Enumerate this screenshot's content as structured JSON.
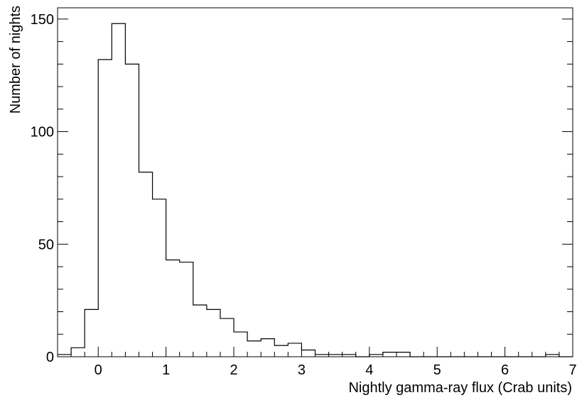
{
  "chart_data": {
    "type": "bar",
    "xlabel": "Nightly gamma-ray flux (Crab units)",
    "ylabel": "Number of nights",
    "xlim": [
      -0.6,
      7
    ],
    "ylim": [
      0,
      155
    ],
    "xticks": [
      0,
      1,
      2,
      3,
      4,
      5,
      6,
      7
    ],
    "yticks": [
      0,
      50,
      100,
      150
    ],
    "bin_width": 0.2,
    "bin_start": -0.6,
    "values": [
      1,
      4,
      21,
      132,
      148,
      130,
      82,
      70,
      43,
      42,
      23,
      21,
      17,
      11,
      7,
      8,
      5,
      6,
      3,
      1,
      1,
      1,
      0,
      1,
      2,
      2,
      0,
      0,
      0,
      0,
      0,
      0,
      0,
      0,
      0,
      0,
      1,
      0
    ],
    "grid": false,
    "line_color": "#000000"
  }
}
